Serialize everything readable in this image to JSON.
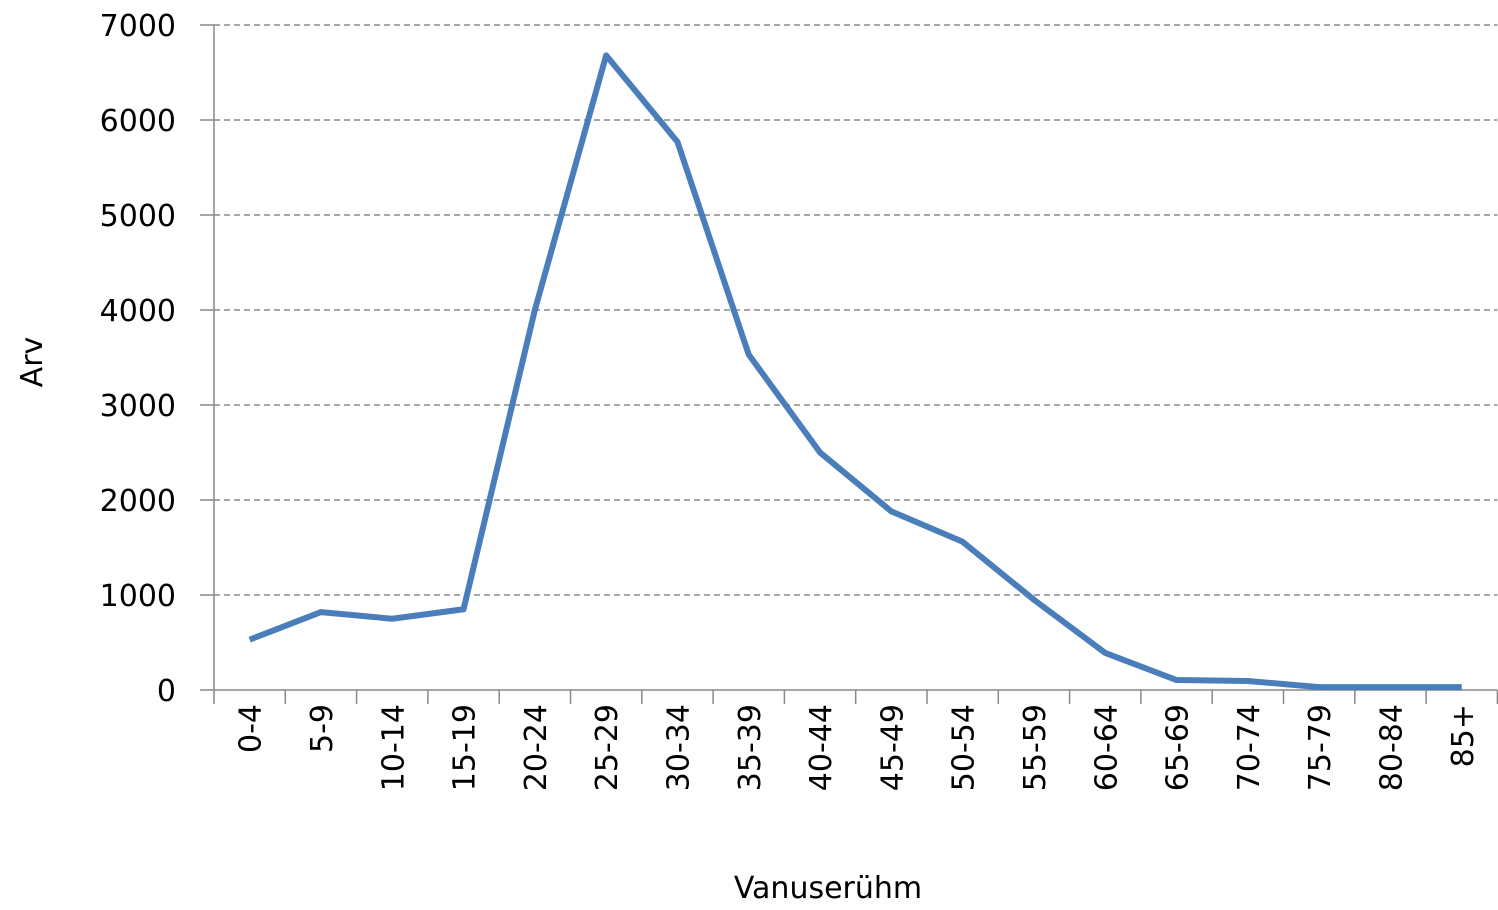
{
  "chart_data": {
    "type": "line",
    "x_label": "Vanuserühm",
    "y_label": "Arv",
    "categories": [
      "0-4",
      "5-9",
      "10-14",
      "15-19",
      "20-24",
      "25-29",
      "30-34",
      "35-39",
      "40-44",
      "45-49",
      "50-54",
      "55-59",
      "60-64",
      "65-69",
      "70-74",
      "75-79",
      "80-84",
      "85+"
    ],
    "series": [
      {
        "color": "#4a7ebb",
        "values": [
          530,
          820,
          750,
          850,
          4000,
          6680,
          5770,
          3530,
          2500,
          1880,
          1560,
          950,
          390,
          105,
          95,
          30,
          30,
          30
        ]
      }
    ],
    "ylim": [
      0,
      7000
    ],
    "yticks": [
      0,
      1000,
      2000,
      3000,
      4000,
      5000,
      6000,
      7000
    ],
    "grid": true
  }
}
